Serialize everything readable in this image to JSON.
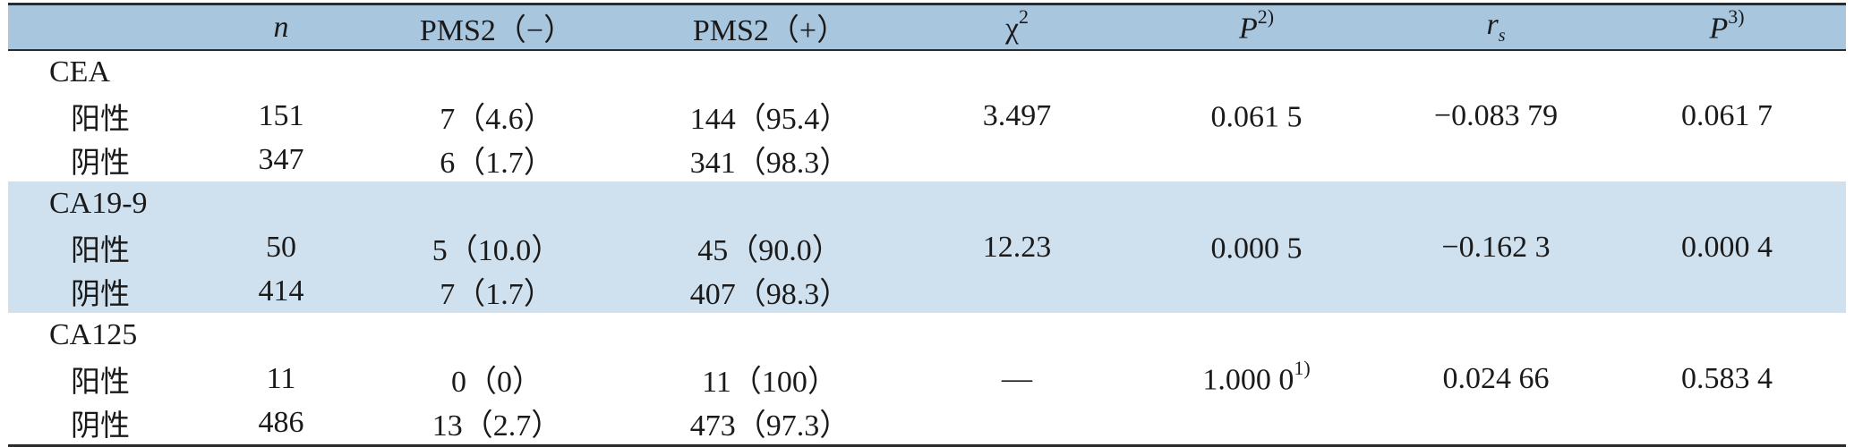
{
  "headers": {
    "blank": "",
    "n": "n",
    "pms2_neg": "PMS2（−）",
    "pms2_pos": "PMS2（+）",
    "chi_base": "χ",
    "chi_sup": "2",
    "p2_base": "P",
    "p2_sup": "2)",
    "rs_base": "r",
    "rs_sub": "s",
    "p3_base": "P",
    "p3_sup": "3)"
  },
  "groups": [
    {
      "marker": "CEA",
      "rows": [
        {
          "label": "阳性",
          "n": "151",
          "pms2_neg": "7（4.6）",
          "pms2_pos": "144（95.4）"
        },
        {
          "label": "阴性",
          "n": "347",
          "pms2_neg": "6（1.7）",
          "pms2_pos": "341（98.3）"
        }
      ],
      "chi2": "3.497",
      "p2": "0.061 5",
      "p2_note": "",
      "rs": "−0.083 79",
      "p3": "0.061 7"
    },
    {
      "marker": "CA19-9",
      "rows": [
        {
          "label": "阳性",
          "n": "50",
          "pms2_neg": "5（10.0）",
          "pms2_pos": "45（90.0）"
        },
        {
          "label": "阴性",
          "n": "414",
          "pms2_neg": "7（1.7）",
          "pms2_pos": "407（98.3）"
        }
      ],
      "chi2": "12.23",
      "p2": "0.000 5",
      "p2_note": "",
      "rs": "−0.162 3",
      "p3": "0.000 4"
    },
    {
      "marker": "CA125",
      "rows": [
        {
          "label": "阳性",
          "n": "11",
          "pms2_neg": "0（0）",
          "pms2_pos": "11（100）"
        },
        {
          "label": "阴性",
          "n": "486",
          "pms2_neg": "13（2.7）",
          "pms2_pos": "473（97.3）"
        }
      ],
      "chi2": "—",
      "p2": "1.000 0",
      "p2_note": "1)",
      "rs": "0.024 66",
      "p3": "0.583 4"
    }
  ],
  "colors": {
    "header_bg": "#a9c6df",
    "shaded_row_bg": "#cfe0ee",
    "rule": "#2b2b2b"
  }
}
